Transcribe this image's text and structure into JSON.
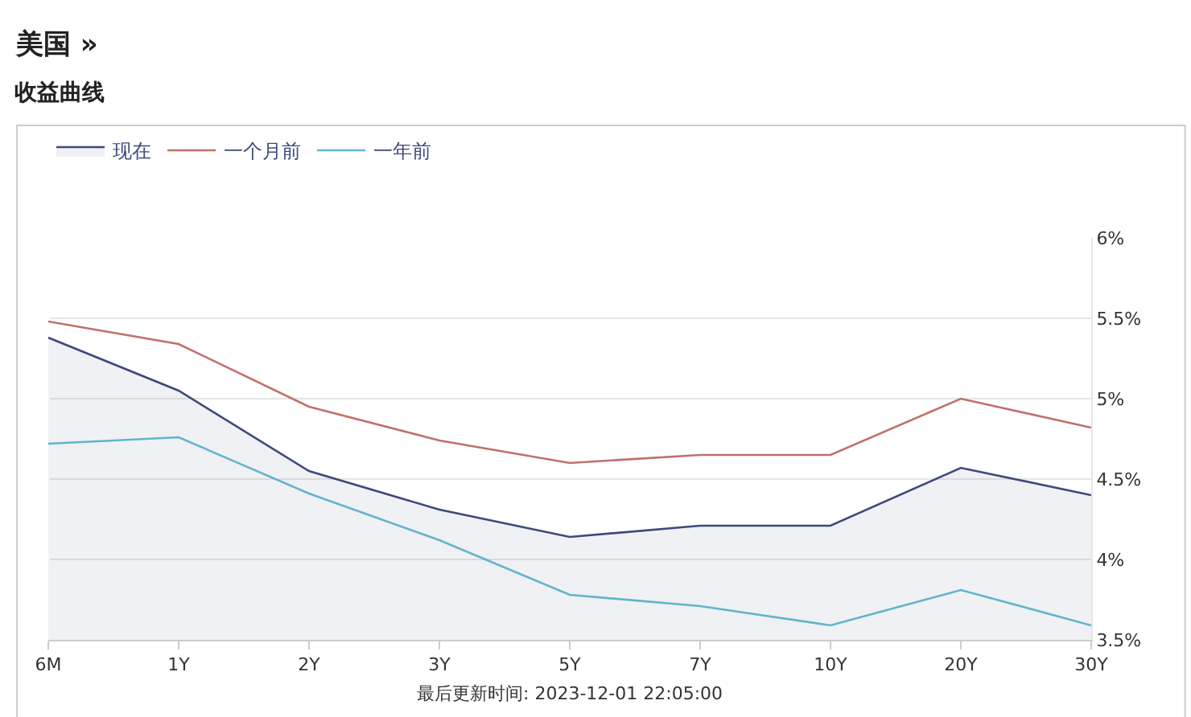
{
  "chart_data": {
    "type": "line",
    "title": "美国 »",
    "subtitle": "收益曲线",
    "categories": [
      "6M",
      "1Y",
      "2Y",
      "3Y",
      "5Y",
      "7Y",
      "10Y",
      "20Y",
      "30Y"
    ],
    "series": [
      {
        "name": "现在",
        "type": "area",
        "color": "#3d4a7a",
        "values": [
          5.38,
          5.05,
          4.55,
          4.31,
          4.14,
          4.21,
          4.21,
          4.57,
          4.4
        ]
      },
      {
        "name": "一个月前",
        "color": "#c0706a",
        "values": [
          5.48,
          5.34,
          4.95,
          4.74,
          4.6,
          4.65,
          4.65,
          5.0,
          4.82
        ]
      },
      {
        "name": "一年前",
        "color": "#62b4cc",
        "values": [
          4.72,
          4.76,
          4.41,
          4.12,
          3.78,
          3.71,
          3.59,
          3.81,
          3.59
        ]
      }
    ],
    "ylim": [
      3.5,
      6
    ],
    "yticks": [
      {
        "value": 3.5,
        "label": "3.5%"
      },
      {
        "value": 4,
        "label": "4%"
      },
      {
        "value": 4.5,
        "label": "4.5%"
      },
      {
        "value": 5,
        "label": "5%"
      },
      {
        "value": 5.5,
        "label": "5.5%"
      },
      {
        "value": 6,
        "label": "6%"
      }
    ],
    "grid": "y",
    "legend": "top left",
    "marker": "none",
    "line_style": "solid",
    "annotations": [
      "最后更新时间: 2023-12-01 22:05:00"
    ]
  }
}
